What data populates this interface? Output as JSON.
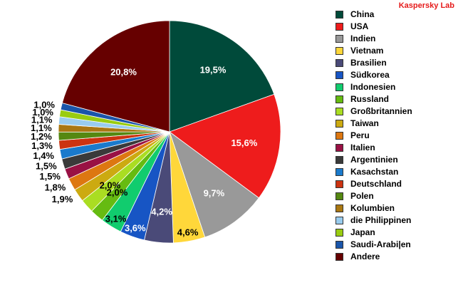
{
  "brand": "Kaspersky Lab",
  "chart_data": {
    "type": "pie",
    "title": "",
    "unit": "%",
    "legend_position": "right",
    "slices": [
      {
        "label": "China",
        "value": 19.5,
        "display": "19,5%",
        "color": "#004a3a"
      },
      {
        "label": "USA",
        "value": 15.6,
        "display": "15,6%",
        "color": "#ee1c1c"
      },
      {
        "label": "Indien",
        "value": 9.7,
        "display": "9,7%",
        "color": "#999999"
      },
      {
        "label": "Vietnam",
        "value": 4.6,
        "display": "4,6%",
        "color": "#ffd73a"
      },
      {
        "label": "Brasilien",
        "value": 4.2,
        "display": "4,2%",
        "color": "#4a4a78"
      },
      {
        "label": "Südkorea",
        "value": 3.6,
        "display": "3,6%",
        "color": "#1755c4"
      },
      {
        "label": "Indonesien",
        "value": 3.1,
        "display": "3,1%",
        "color": "#11cc6e"
      },
      {
        "label": "Russland",
        "value": 2.0,
        "display": "2,0%",
        "color": "#66bb11"
      },
      {
        "label": "Großbritannien",
        "value": 2.0,
        "display": "2,0%",
        "color": "#aadd22"
      },
      {
        "label": "Taiwan",
        "value": 1.9,
        "display": "1,9%",
        "color": "#ccaa11"
      },
      {
        "label": "Peru",
        "value": 1.8,
        "display": "1,8%",
        "color": "#dd7711"
      },
      {
        "label": "Italien",
        "value": 1.5,
        "display": "1,5%",
        "color": "#991144"
      },
      {
        "label": "Argentinien",
        "value": 1.5,
        "display": "1,5%",
        "color": "#3a3a3a"
      },
      {
        "label": "Kasachstan",
        "value": 1.4,
        "display": "1,4%",
        "color": "#1a7acc"
      },
      {
        "label": "Deutschland",
        "value": 1.3,
        "display": "1,3%",
        "color": "#cc3311"
      },
      {
        "label": "Polen",
        "value": 1.2,
        "display": "1,2%",
        "color": "#558811"
      },
      {
        "label": "Kolumbien",
        "value": 1.1,
        "display": "1,1%",
        "color": "#aa7711"
      },
      {
        "label": "die Philippinen",
        "value": 1.1,
        "display": "1,1%",
        "color": "#99ccee"
      },
      {
        "label": "Japan",
        "value": 1.0,
        "display": "1,0%",
        "color": "#99cc11"
      },
      {
        "label": "Saudi-Arabi|en",
        "value": 1.0,
        "display": "1,0%",
        "color": "#1a55aa"
      },
      {
        "label": "Andere",
        "value": 20.8,
        "display": "20,8%",
        "color": "#660000"
      }
    ]
  }
}
